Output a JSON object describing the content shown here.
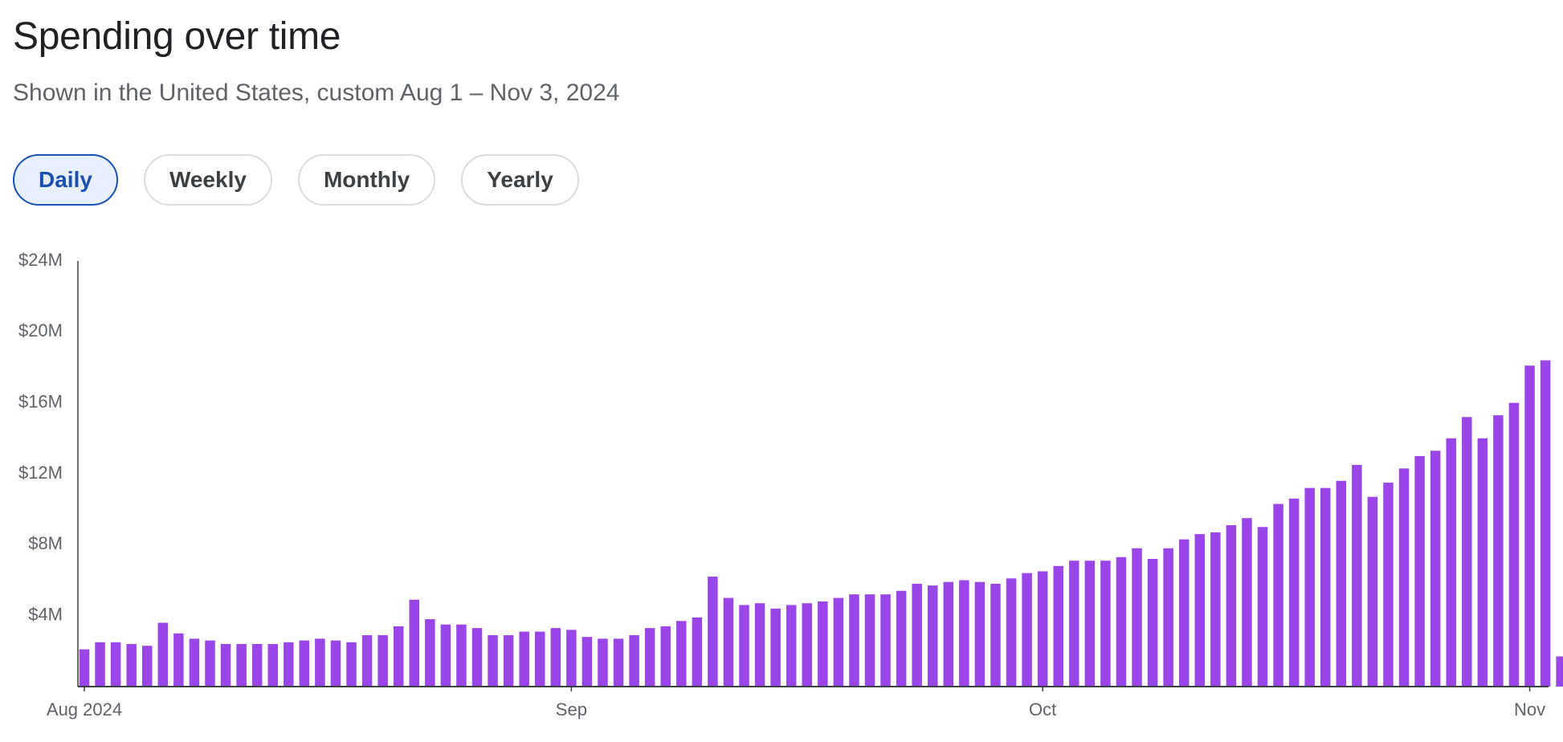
{
  "header": {
    "title": "Spending over time",
    "subtitle": "Shown in the United States, custom Aug 1 – Nov 3, 2024"
  },
  "toggles": [
    {
      "label": "Daily",
      "active": true
    },
    {
      "label": "Weekly",
      "active": false
    },
    {
      "label": "Monthly",
      "active": false
    },
    {
      "label": "Yearly",
      "active": false
    }
  ],
  "colors": {
    "bar": "#9945e8",
    "axis": "#5f6368",
    "active_toggle": "#1a4fb3"
  },
  "chart_data": {
    "type": "bar",
    "title": "Spending over time",
    "xlabel": "",
    "ylabel": "",
    "ylim": [
      0,
      24
    ],
    "y_unit": "$M",
    "y_ticks": [
      {
        "value": 4,
        "label": "$4M"
      },
      {
        "value": 8,
        "label": "$8M"
      },
      {
        "value": 12,
        "label": "$12M"
      },
      {
        "value": 16,
        "label": "$16M"
      },
      {
        "value": 20,
        "label": "$20M"
      },
      {
        "value": 24,
        "label": "$24M"
      }
    ],
    "x_ticks": [
      {
        "date": "2024-08-01",
        "label": "Aug 2024"
      },
      {
        "date": "2024-09-01",
        "label": "Sep"
      },
      {
        "date": "2024-10-01",
        "label": "Oct"
      },
      {
        "date": "2024-11-01",
        "label": "Nov"
      }
    ],
    "grid": false,
    "legend": "none",
    "dates": [
      "2024-08-01",
      "2024-08-02",
      "2024-08-03",
      "2024-08-04",
      "2024-08-05",
      "2024-08-06",
      "2024-08-07",
      "2024-08-08",
      "2024-08-09",
      "2024-08-10",
      "2024-08-11",
      "2024-08-12",
      "2024-08-13",
      "2024-08-14",
      "2024-08-15",
      "2024-08-16",
      "2024-08-17",
      "2024-08-18",
      "2024-08-19",
      "2024-08-20",
      "2024-08-21",
      "2024-08-22",
      "2024-08-23",
      "2024-08-24",
      "2024-08-25",
      "2024-08-26",
      "2024-08-27",
      "2024-08-28",
      "2024-08-29",
      "2024-08-30",
      "2024-08-31",
      "2024-09-01",
      "2024-09-02",
      "2024-09-03",
      "2024-09-04",
      "2024-09-05",
      "2024-09-06",
      "2024-09-07",
      "2024-09-08",
      "2024-09-09",
      "2024-09-10",
      "2024-09-11",
      "2024-09-12",
      "2024-09-13",
      "2024-09-14",
      "2024-09-15",
      "2024-09-16",
      "2024-09-17",
      "2024-09-18",
      "2024-09-19",
      "2024-09-20",
      "2024-09-21",
      "2024-09-22",
      "2024-09-23",
      "2024-09-24",
      "2024-09-25",
      "2024-09-26",
      "2024-09-27",
      "2024-09-28",
      "2024-09-29",
      "2024-09-30",
      "2024-10-01",
      "2024-10-02",
      "2024-10-03",
      "2024-10-04",
      "2024-10-05",
      "2024-10-06",
      "2024-10-07",
      "2024-10-08",
      "2024-10-09",
      "2024-10-10",
      "2024-10-11",
      "2024-10-12",
      "2024-10-13",
      "2024-10-14",
      "2024-10-15",
      "2024-10-16",
      "2024-10-17",
      "2024-10-18",
      "2024-10-19",
      "2024-10-20",
      "2024-10-21",
      "2024-10-22",
      "2024-10-23",
      "2024-10-24",
      "2024-10-25",
      "2024-10-26",
      "2024-10-27",
      "2024-10-28",
      "2024-10-29",
      "2024-10-30",
      "2024-10-31",
      "2024-11-01",
      "2024-11-02",
      "2024-11-03"
    ],
    "values": [
      2.1,
      2.5,
      2.5,
      2.4,
      2.3,
      3.6,
      3.0,
      2.7,
      2.6,
      2.4,
      2.4,
      2.4,
      2.4,
      2.5,
      2.6,
      2.7,
      2.6,
      2.5,
      2.9,
      2.9,
      3.4,
      4.9,
      3.8,
      3.5,
      3.5,
      3.3,
      2.9,
      2.9,
      3.1,
      3.1,
      3.3,
      3.2,
      2.8,
      2.7,
      2.7,
      2.9,
      3.3,
      3.4,
      3.7,
      3.9,
      6.2,
      5.0,
      4.6,
      4.7,
      4.4,
      4.6,
      4.7,
      4.8,
      5.0,
      5.2,
      5.2,
      5.2,
      5.4,
      5.8,
      5.7,
      5.9,
      6.0,
      5.9,
      5.8,
      6.1,
      6.4,
      6.5,
      6.8,
      7.1,
      7.1,
      7.1,
      7.3,
      7.8,
      7.2,
      7.8,
      8.3,
      8.6,
      8.7,
      9.1,
      9.5,
      9.0,
      10.3,
      10.6,
      11.2,
      11.2,
      11.6,
      12.5,
      10.7,
      11.5,
      12.3,
      13.0,
      13.3,
      14.0,
      15.2,
      14.0,
      15.3,
      16.0,
      18.1,
      18.4,
      1.7
    ]
  }
}
